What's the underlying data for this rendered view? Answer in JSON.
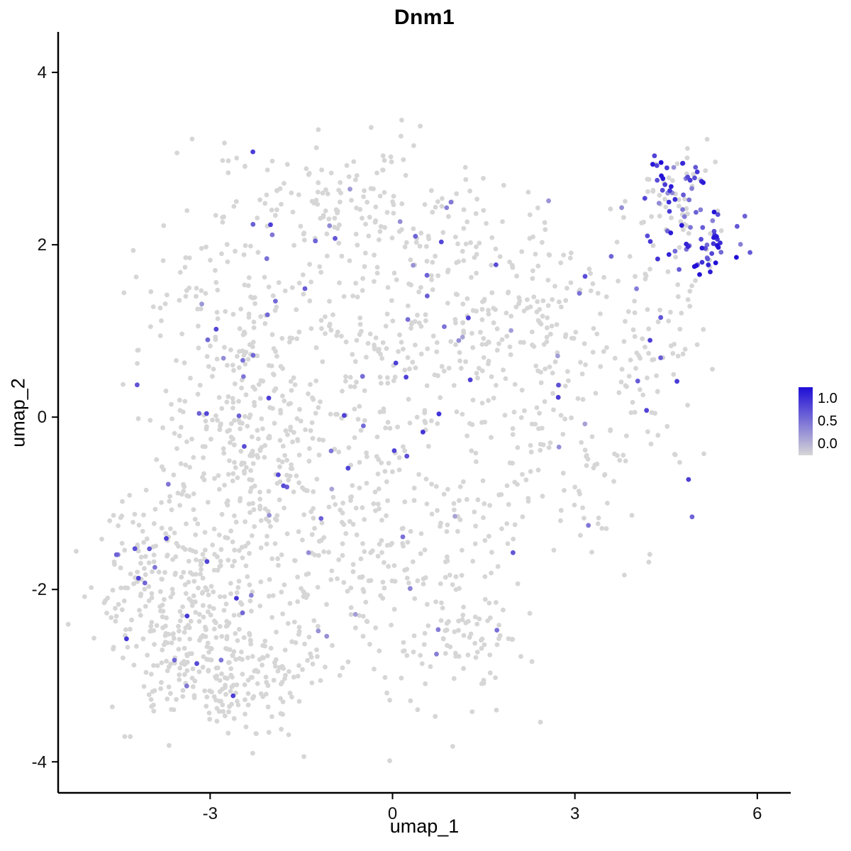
{
  "title": "Dnm1",
  "legend": {
    "labels": [
      "1.0",
      "0.5",
      "0.0"
    ]
  },
  "chart_data": {
    "type": "scatter",
    "title": "Dnm1",
    "xlabel": "umap_1",
    "ylabel": "umap_2",
    "x_domain": [
      -5.5,
      6.55
    ],
    "y_domain": [
      -4.36,
      4.47
    ],
    "x_ticks": {
      "values": [
        -3,
        0,
        3,
        6
      ],
      "labels": [
        "-3",
        "0",
        "3",
        "6"
      ]
    },
    "y_ticks": {
      "values": [
        -4,
        -2,
        0,
        2,
        4
      ],
      "labels": [
        "-4",
        "-2",
        "0",
        "2",
        "4"
      ]
    },
    "color_scale": {
      "low_value": 0.0,
      "high_value": 1.0,
      "low_color": "#d6d6d6",
      "high_color": "#1f0dd6",
      "legend_ticks": [
        1.0,
        0.5,
        0.0
      ]
    },
    "point_radius": 3.4,
    "seed": 11,
    "clusters": [
      {
        "cx": -3.2,
        "cy": -2.5,
        "sx": 0.75,
        "sy": 0.55,
        "n": 300,
        "expr_frac": 0.05
      },
      {
        "cx": -3.7,
        "cy": -1.7,
        "sx": 0.45,
        "sy": 0.4,
        "n": 80,
        "expr_frac": 0.08
      },
      {
        "cx": -2.4,
        "cy": -3.0,
        "sx": 0.55,
        "sy": 0.35,
        "n": 100,
        "expr_frac": 0.04
      },
      {
        "cx": -2.9,
        "cy": 0.7,
        "sx": 0.65,
        "sy": 0.9,
        "n": 220,
        "expr_frac": 0.07
      },
      {
        "cx": -2.3,
        "cy": -0.9,
        "sx": 0.7,
        "sy": 0.6,
        "n": 140,
        "expr_frac": 0.05
      },
      {
        "cx": -0.9,
        "cy": 0.2,
        "sx": 0.95,
        "sy": 0.95,
        "n": 230,
        "expr_frac": 0.07
      },
      {
        "cx": -0.2,
        "cy": -1.9,
        "sx": 0.95,
        "sy": 0.7,
        "n": 180,
        "expr_frac": 0.06
      },
      {
        "cx": -0.7,
        "cy": 2.45,
        "sx": 1.15,
        "sy": 0.38,
        "n": 150,
        "expr_frac": 0.05
      },
      {
        "cx": 0.6,
        "cy": 1.2,
        "sx": 0.85,
        "sy": 0.7,
        "n": 130,
        "expr_frac": 0.08
      },
      {
        "cx": 2.1,
        "cy": 1.4,
        "sx": 0.7,
        "sy": 0.55,
        "n": 110,
        "expr_frac": 0.06
      },
      {
        "cx": 3.3,
        "cy": 0.2,
        "sx": 0.85,
        "sy": 0.9,
        "n": 120,
        "expr_frac": 0.04
      },
      {
        "cx": 4.3,
        "cy": 1.1,
        "sx": 0.5,
        "sy": 0.6,
        "n": 70,
        "expr_frac": 0.1
      },
      {
        "cx": 4.75,
        "cy": 2.75,
        "sx": 0.24,
        "sy": 0.22,
        "n": 45,
        "expr_frac": 0.7,
        "expr_min": 0.35,
        "expr_max": 1.0
      },
      {
        "cx": 5.1,
        "cy": 2.05,
        "sx": 0.3,
        "sy": 0.22,
        "n": 55,
        "expr_frac": 0.8,
        "expr_min": 0.4,
        "expr_max": 1.0
      },
      {
        "cx": 4.5,
        "cy": 2.4,
        "sx": 0.3,
        "sy": 0.3,
        "n": 35,
        "expr_frac": 0.3,
        "expr_min": 0.3,
        "expr_max": 0.9
      },
      {
        "cx": -4.55,
        "cy": -1.25,
        "sx": 0.12,
        "sy": 0.18,
        "n": 8,
        "expr_frac": 0.0
      },
      {
        "cx": 1.3,
        "cy": -2.6,
        "sx": 0.55,
        "sy": 0.45,
        "n": 60,
        "expr_frac": 0.05
      },
      {
        "cx": 1.7,
        "cy": -0.6,
        "sx": 0.6,
        "sy": 0.7,
        "n": 80,
        "expr_frac": 0.05
      }
    ]
  }
}
